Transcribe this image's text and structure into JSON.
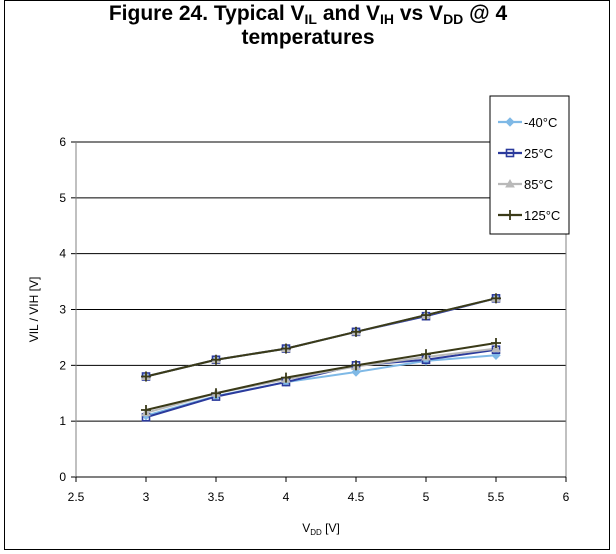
{
  "title": {
    "prefix": "Figure 24. Typical V",
    "sub1": "IL",
    "mid1": " and V",
    "sub2": "IH",
    "mid2": " vs V",
    "sub3": "DD",
    "suffix": " @ 4",
    "line2": "temperatures"
  },
  "chart_data": {
    "type": "line",
    "xlabel_main": "V",
    "xlabel_sub": "DD",
    "xlabel_unit": " [V]",
    "ylabel": "VIL / VIH [V]",
    "xlim": [
      2.5,
      6
    ],
    "ylim": [
      0,
      6
    ],
    "xticks": [
      "2.5",
      "3",
      "3.5",
      "4",
      "4.5",
      "5",
      "5.5",
      "6"
    ],
    "yticks": [
      "0",
      "1",
      "2",
      "3",
      "4",
      "5",
      "6"
    ],
    "grid": "horizontal",
    "legend_position": "top-right",
    "x": [
      3,
      3.5,
      4,
      4.5,
      5,
      5.5
    ],
    "series": [
      {
        "name": "-40°C",
        "color": "#7fb9e6",
        "marker": "diamond",
        "vil": [
          1.1,
          1.45,
          1.7,
          1.88,
          2.08,
          2.18
        ],
        "vih": [
          1.8,
          2.1,
          2.3,
          2.6,
          2.9,
          3.2
        ]
      },
      {
        "name": "25°C",
        "color": "#2b3a9c",
        "marker": "square",
        "vil": [
          1.07,
          1.44,
          1.7,
          2.0,
          2.1,
          2.28
        ],
        "vih": [
          1.8,
          2.1,
          2.3,
          2.6,
          2.88,
          3.2
        ]
      },
      {
        "name": "85°C",
        "color": "#b9b9b9",
        "marker": "triangle",
        "vil": [
          1.15,
          1.5,
          1.75,
          1.98,
          2.15,
          2.3
        ],
        "vih": [
          1.8,
          2.1,
          2.3,
          2.6,
          2.9,
          3.2
        ]
      },
      {
        "name": "125°C",
        "color": "#3a3a18",
        "marker": "plus",
        "vil": [
          1.2,
          1.5,
          1.78,
          2.0,
          2.2,
          2.4
        ],
        "vih": [
          1.8,
          2.1,
          2.3,
          2.6,
          2.9,
          3.2
        ]
      }
    ]
  }
}
